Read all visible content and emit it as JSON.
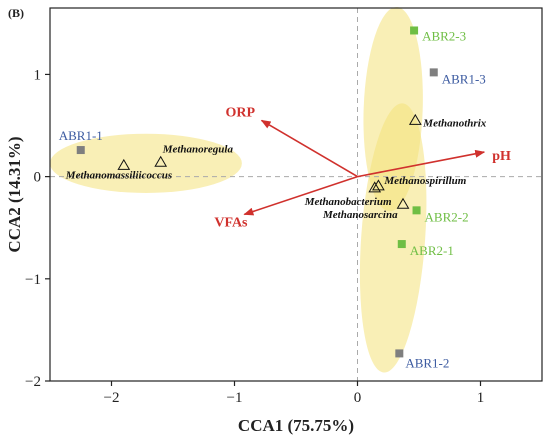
{
  "chart_data": {
    "type": "scatter",
    "panel_label": "(B)",
    "xlabel": "CCA1 (75.75%)",
    "ylabel": "CCA2 (14.31%)",
    "xlim": [
      -2.5,
      1.5
    ],
    "ylim": [
      -2.0,
      1.65
    ],
    "xticks": [
      -2,
      -1,
      0,
      1
    ],
    "yticks": [
      -2,
      -1,
      0,
      1
    ],
    "tick_labels_x": [
      "−2",
      "−1",
      "0",
      "1"
    ],
    "tick_labels_y": [
      "−2",
      "−1",
      "0",
      "1"
    ],
    "reference_lines": "dashed lines at x=0 and y=0",
    "samples": [
      {
        "label": "ABR1-1",
        "x": -2.25,
        "y": 0.26,
        "color": "#7f7f7f",
        "label_color": "#3b5aa0"
      },
      {
        "label": "ABR1-3",
        "x": 0.62,
        "y": 1.02,
        "color": "#7f7f7f",
        "label_color": "#3b5aa0"
      },
      {
        "label": "ABR1-2",
        "x": 0.34,
        "y": -1.73,
        "color": "#7f7f7f",
        "label_color": "#3b5aa0"
      },
      {
        "label": "ABR2-3",
        "x": 0.46,
        "y": 1.43,
        "color": "#6fbe44",
        "label_color": "#6fbe44"
      },
      {
        "label": "ABR2-2",
        "x": 0.48,
        "y": -0.33,
        "color": "#6fbe44",
        "label_color": "#6fbe44"
      },
      {
        "label": "ABR2-1",
        "x": 0.36,
        "y": -0.66,
        "color": "#6fbe44",
        "label_color": "#6fbe44"
      }
    ],
    "species": [
      {
        "label": "Methanoregula",
        "x": -1.6,
        "y": 0.14
      },
      {
        "label": "Methanomassiliicoccus",
        "x": -1.9,
        "y": 0.11
      },
      {
        "label": "Methanothrix",
        "x": 0.47,
        "y": 0.55
      },
      {
        "label": "Methanospirillum",
        "x": 0.17,
        "y": -0.09
      },
      {
        "label": "Methanobacterium",
        "x": 0.14,
        "y": -0.11
      },
      {
        "label": "Methanosarcina",
        "x": 0.37,
        "y": -0.27
      }
    ],
    "env_vectors": [
      {
        "label": "ORP",
        "x": -0.78,
        "y": 0.55
      },
      {
        "label": "VFAs",
        "x": -0.92,
        "y": -0.37
      },
      {
        "label": "pH",
        "x": 1.03,
        "y": 0.24
      }
    ],
    "ellipses": [
      {
        "cx": -1.72,
        "cy": 0.13,
        "rx": 0.78,
        "ry": 0.29,
        "rotate_deg": 0
      },
      {
        "cx": 0.29,
        "cy": 0.66,
        "rx": 0.24,
        "ry": 1.0,
        "rotate_deg": 2
      },
      {
        "cx": 0.29,
        "cy": -0.6,
        "rx": 0.26,
        "ry": 1.32,
        "rotate_deg": 4
      }
    ],
    "colors": {
      "vector": "#d0312d",
      "ellipse_fill": "#f4e27a",
      "axis": "#222222",
      "reference": "#aaaaaa"
    }
  }
}
